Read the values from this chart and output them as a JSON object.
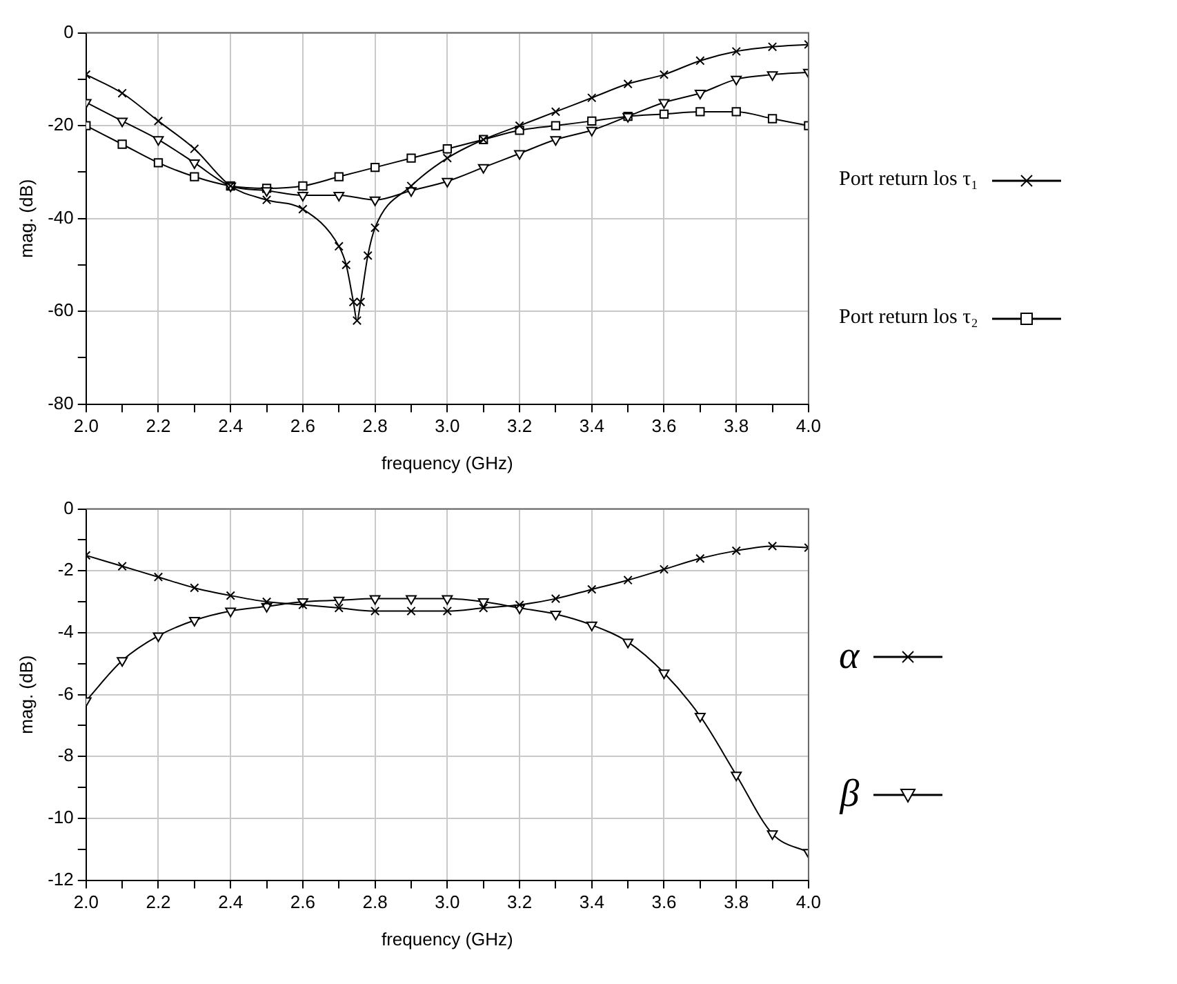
{
  "chart_data": [
    {
      "type": "line",
      "xlabel": "frequency (GHz)",
      "ylabel": "mag. (dB)",
      "xlim": [
        2.0,
        4.0
      ],
      "ylim": [
        -80,
        0
      ],
      "xticks": [
        {
          "value": 2.0,
          "label": "2.0"
        },
        {
          "value": 2.1,
          "label": null
        },
        {
          "value": 2.2,
          "label": "2.2"
        },
        {
          "value": 2.3,
          "label": null
        },
        {
          "value": 2.4,
          "label": "2.4"
        },
        {
          "value": 2.5,
          "label": null
        },
        {
          "value": 2.6,
          "label": "2.6"
        },
        {
          "value": 2.7,
          "label": null
        },
        {
          "value": 2.8,
          "label": "2.8"
        },
        {
          "value": 2.9,
          "label": null
        },
        {
          "value": 3.0,
          "label": "3.0"
        },
        {
          "value": 3.1,
          "label": null
        },
        {
          "value": 3.2,
          "label": "3.2"
        },
        {
          "value": 3.3,
          "label": null
        },
        {
          "value": 3.4,
          "label": "3.4"
        },
        {
          "value": 3.5,
          "label": null
        },
        {
          "value": 3.6,
          "label": "3.6"
        },
        {
          "value": 3.7,
          "label": null
        },
        {
          "value": 3.8,
          "label": "3.8"
        },
        {
          "value": 3.9,
          "label": null
        },
        {
          "value": 4.0,
          "label": "4.0"
        }
      ],
      "yticks": [
        -80,
        {
          "value": -70,
          "label": null
        },
        -60,
        {
          "value": -50,
          "label": null
        },
        -40,
        {
          "value": -30,
          "label": null
        },
        -20,
        {
          "value": -10,
          "label": null
        },
        0
      ],
      "grid": true,
      "legend": "right",
      "series": [
        {
          "name": "Port return los τ₁",
          "color": "#000000",
          "marker": "cross",
          "x": [
            2.0,
            2.1,
            2.2,
            2.3,
            2.4,
            2.5,
            2.6,
            2.7,
            2.72,
            2.74,
            2.75,
            2.76,
            2.78,
            2.8,
            2.9,
            3.0,
            3.1,
            3.2,
            3.3,
            3.4,
            3.5,
            3.6,
            3.7,
            3.8,
            3.9,
            4.0
          ],
          "values": [
            -9,
            -13,
            -19,
            -25,
            -33,
            -36,
            -38,
            -46,
            -50,
            -58,
            -62,
            -58,
            -48,
            -42,
            -33,
            -27,
            -23,
            -20,
            -17,
            -14,
            -11,
            -9,
            -6,
            -4,
            -3,
            -2.5
          ]
        },
        {
          "color": "#000000",
          "marker": "triangle",
          "x": [
            2.0,
            2.1,
            2.2,
            2.3,
            2.4,
            2.5,
            2.6,
            2.7,
            2.8,
            2.9,
            3.0,
            3.1,
            3.2,
            3.3,
            3.4,
            3.5,
            3.6,
            3.7,
            3.8,
            3.9,
            4.0
          ],
          "values": [
            -15,
            -19,
            -23,
            -28,
            -33,
            -34,
            -35,
            -35,
            -36,
            -34,
            -32,
            -29,
            -26,
            -23,
            -21,
            -18,
            -15,
            -13,
            -10,
            -9,
            -8.5
          ]
        },
        {
          "name": "Port return los τ₂",
          "color": "#000000",
          "marker": "square",
          "x": [
            2.0,
            2.1,
            2.2,
            2.3,
            2.4,
            2.5,
            2.6,
            2.7,
            2.8,
            2.9,
            3.0,
            3.1,
            3.2,
            3.3,
            3.4,
            3.5,
            3.6,
            3.7,
            3.8,
            3.9,
            4.0
          ],
          "values": [
            -20,
            -24,
            -28,
            -31,
            -33,
            -33.5,
            -33,
            -31,
            -29,
            -27,
            -25,
            -23,
            -21,
            -20,
            -19,
            -18,
            -17.5,
            -17,
            -17,
            -18.5,
            -20
          ]
        }
      ]
    },
    {
      "type": "line",
      "xlabel": "frequency (GHz)",
      "ylabel": "mag. (dB)",
      "xlim": [
        2.0,
        4.0
      ],
      "ylim": [
        -12,
        0
      ],
      "xticks": [
        {
          "value": 2.0,
          "label": "2.0"
        },
        {
          "value": 2.1,
          "label": null
        },
        {
          "value": 2.2,
          "label": "2.2"
        },
        {
          "value": 2.3,
          "label": null
        },
        {
          "value": 2.4,
          "label": "2.4"
        },
        {
          "value": 2.5,
          "label": null
        },
        {
          "value": 2.6,
          "label": "2.6"
        },
        {
          "value": 2.7,
          "label": null
        },
        {
          "value": 2.8,
          "label": "2.8"
        },
        {
          "value": 2.9,
          "label": null
        },
        {
          "value": 3.0,
          "label": "3.0"
        },
        {
          "value": 3.1,
          "label": null
        },
        {
          "value": 3.2,
          "label": "3.2"
        },
        {
          "value": 3.3,
          "label": null
        },
        {
          "value": 3.4,
          "label": "3.4"
        },
        {
          "value": 3.5,
          "label": null
        },
        {
          "value": 3.6,
          "label": "3.6"
        },
        {
          "value": 3.7,
          "label": null
        },
        {
          "value": 3.8,
          "label": "3.8"
        },
        {
          "value": 3.9,
          "label": null
        },
        {
          "value": 4.0,
          "label": "4.0"
        }
      ],
      "yticks": [
        -12,
        {
          "value": -11,
          "label": null
        },
        -10,
        {
          "value": -9,
          "label": null
        },
        -8,
        {
          "value": -7,
          "label": null
        },
        -6,
        {
          "value": -5,
          "label": null
        },
        -4,
        {
          "value": -3,
          "label": null
        },
        -2,
        {
          "value": -1,
          "label": null
        },
        0
      ],
      "grid": true,
      "legend": "right",
      "series": [
        {
          "name": "α",
          "color": "#000000",
          "marker": "cross",
          "x": [
            2.0,
            2.1,
            2.2,
            2.3,
            2.4,
            2.5,
            2.6,
            2.7,
            2.8,
            2.9,
            3.0,
            3.1,
            3.2,
            3.3,
            3.4,
            3.5,
            3.6,
            3.7,
            3.8,
            3.9,
            4.0
          ],
          "values": [
            -1.5,
            -1.85,
            -2.2,
            -2.55,
            -2.8,
            -3.0,
            -3.1,
            -3.2,
            -3.3,
            -3.3,
            -3.3,
            -3.2,
            -3.1,
            -2.9,
            -2.6,
            -2.3,
            -1.95,
            -1.6,
            -1.35,
            -1.2,
            -1.25
          ]
        },
        {
          "name": "β",
          "color": "#000000",
          "marker": "triangle",
          "x": [
            2.0,
            2.1,
            2.2,
            2.3,
            2.4,
            2.5,
            2.6,
            2.7,
            2.8,
            2.9,
            3.0,
            3.1,
            3.2,
            3.3,
            3.4,
            3.5,
            3.6,
            3.7,
            3.8,
            3.9,
            4.0
          ],
          "values": [
            -6.2,
            -4.9,
            -4.1,
            -3.6,
            -3.3,
            -3.15,
            -3.0,
            -2.95,
            -2.9,
            -2.9,
            -2.9,
            -3.0,
            -3.2,
            -3.4,
            -3.75,
            -4.3,
            -5.3,
            -6.7,
            -8.6,
            -10.5,
            -11.1
          ]
        }
      ]
    }
  ]
}
